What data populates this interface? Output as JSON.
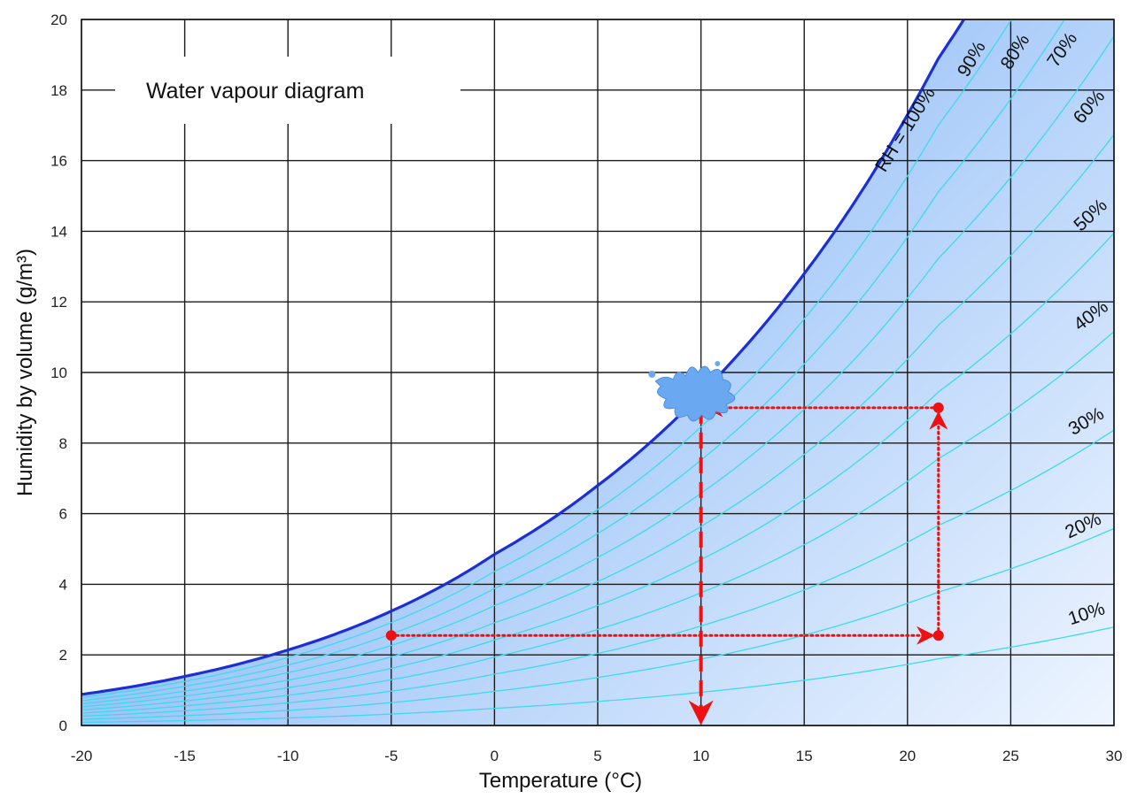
{
  "chart_data": {
    "type": "line",
    "title": "Water vapour diagram",
    "xlabel": "Temperature (°C)",
    "ylabel": "Humidity by volume (g/m³)",
    "xlim": [
      -20,
      30
    ],
    "ylim": [
      0,
      20
    ],
    "xticks": [
      "-20",
      "-15",
      "-10",
      "-5",
      "0",
      "5",
      "10",
      "15",
      "20",
      "25",
      "30"
    ],
    "yticks": [
      "0",
      "2",
      "4",
      "6",
      "8",
      "10",
      "12",
      "14",
      "16",
      "18",
      "20"
    ],
    "grid": true,
    "series": [
      {
        "name": "RH = 100%",
        "rh": 1.0,
        "label": "RH = 100%"
      },
      {
        "name": "90%",
        "rh": 0.9,
        "label": "90%"
      },
      {
        "name": "80%",
        "rh": 0.8,
        "label": "80%"
      },
      {
        "name": "70%",
        "rh": 0.7,
        "label": "70%"
      },
      {
        "name": "60%",
        "rh": 0.6,
        "label": "60%"
      },
      {
        "name": "50%",
        "rh": 0.5,
        "label": "50%"
      },
      {
        "name": "40%",
        "rh": 0.4,
        "label": "40%"
      },
      {
        "name": "30%",
        "rh": 0.3,
        "label": "30%"
      },
      {
        "name": "20%",
        "rh": 0.2,
        "label": "20%"
      },
      {
        "name": "10%",
        "rh": 0.1,
        "label": "10%"
      }
    ],
    "saturation_points": [
      {
        "x": -20,
        "y": 0.88
      },
      {
        "x": -15,
        "y": 1.39
      },
      {
        "x": -10,
        "y": 2.14
      },
      {
        "x": -5,
        "y": 3.24
      },
      {
        "x": 0,
        "y": 4.85
      },
      {
        "x": 5,
        "y": 6.8
      },
      {
        "x": 10,
        "y": 9.4
      },
      {
        "x": 15,
        "y": 12.8
      },
      {
        "x": 20,
        "y": 17.3
      },
      {
        "x": 21.5,
        "y": 18.9
      },
      {
        "x": 23.8,
        "y": 21.0
      }
    ],
    "annotations": {
      "points": [
        {
          "x": -5,
          "y": 2.55
        },
        {
          "x": 21.5,
          "y": 2.55
        },
        {
          "x": 21.5,
          "y": 9.0
        }
      ],
      "dotted_path": [
        {
          "x": -5,
          "y": 2.55
        },
        {
          "x": 21.5,
          "y": 2.55
        },
        {
          "x": 21.5,
          "y": 9.0
        },
        {
          "x": 10,
          "y": 9.0
        }
      ],
      "dewpoint_drop": {
        "x": 10,
        "y_from": 9.0,
        "y_to": 0
      },
      "splash": {
        "x": 9.6,
        "y": 9.5
      }
    },
    "colors": {
      "saturation_line": "#1a2fd6",
      "rh_lines": "#3fd9ec",
      "fill_top": "#4d94f0",
      "fill_bottom": "#eef5ff",
      "annotation": "#ee1111",
      "splash": "#6aa9f2",
      "grid": "#1a1a1a"
    }
  }
}
